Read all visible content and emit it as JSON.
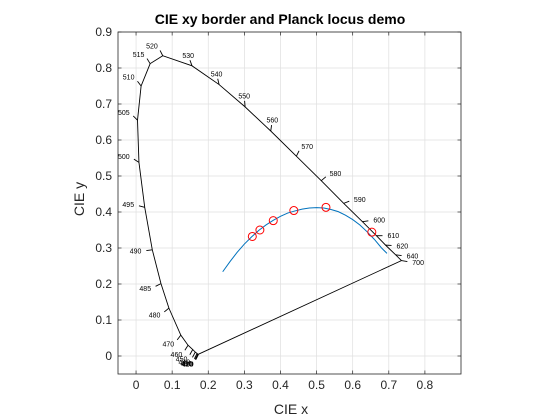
{
  "chart_data": {
    "type": "line",
    "title": "CIE xy border and Planck locus demo",
    "xlabel": "CIE x",
    "ylabel": "CIE y",
    "xlim": [
      -0.05,
      0.9
    ],
    "ylim": [
      -0.05,
      0.9
    ],
    "xticks": [
      0,
      0.1,
      0.2,
      0.3,
      0.4,
      0.5,
      0.6,
      0.7,
      0.8
    ],
    "xtick_labels": [
      "0",
      "0.1",
      "0.2",
      "0.3",
      "0.4",
      "0.5",
      "0.6",
      "0.7",
      "0.8"
    ],
    "yticks": [
      0,
      0.1,
      0.2,
      0.3,
      0.4,
      0.5,
      0.6,
      0.7,
      0.8,
      0.9
    ],
    "ytick_labels": [
      "0",
      "0.1",
      "0.2",
      "0.3",
      "0.4",
      "0.5",
      "0.6",
      "0.7",
      "0.8",
      "0.9"
    ],
    "grid": true,
    "spectral_locus": [
      {
        "label": "400",
        "x": 0.173,
        "y": 0.005
      },
      {
        "label": "410",
        "x": 0.172,
        "y": 0.005
      },
      {
        "label": "420",
        "x": 0.171,
        "y": 0.005
      },
      {
        "label": "430",
        "x": 0.169,
        "y": 0.007
      },
      {
        "label": "440",
        "x": 0.164,
        "y": 0.011
      },
      {
        "label": "450",
        "x": 0.157,
        "y": 0.018
      },
      {
        "label": "460",
        "x": 0.144,
        "y": 0.03
      },
      {
        "label": "470",
        "x": 0.124,
        "y": 0.058
      },
      {
        "label": "480",
        "x": 0.091,
        "y": 0.133
      },
      {
        "label": "485",
        "x": 0.069,
        "y": 0.201
      },
      {
        "label": "490",
        "x": 0.045,
        "y": 0.295
      },
      {
        "label": "495",
        "x": 0.024,
        "y": 0.413
      },
      {
        "label": "500",
        "x": 0.008,
        "y": 0.538
      },
      {
        "label": "505",
        "x": 0.004,
        "y": 0.655
      },
      {
        "label": "510",
        "x": 0.014,
        "y": 0.75
      },
      {
        "label": "515",
        "x": 0.039,
        "y": 0.812
      },
      {
        "label": "520",
        "x": 0.074,
        "y": 0.834
      },
      {
        "label": "530",
        "x": 0.155,
        "y": 0.806
      },
      {
        "label": "540",
        "x": 0.23,
        "y": 0.754
      },
      {
        "label": "550",
        "x": 0.302,
        "y": 0.692
      },
      {
        "label": "560",
        "x": 0.373,
        "y": 0.625
      },
      {
        "label": "570",
        "x": 0.444,
        "y": 0.555
      },
      {
        "label": "580",
        "x": 0.513,
        "y": 0.487
      },
      {
        "label": "590",
        "x": 0.575,
        "y": 0.424
      },
      {
        "label": "600",
        "x": 0.627,
        "y": 0.373
      },
      {
        "label": "610",
        "x": 0.666,
        "y": 0.334
      },
      {
        "label": "620",
        "x": 0.691,
        "y": 0.308
      },
      {
        "label": "640",
        "x": 0.719,
        "y": 0.281
      },
      {
        "label": "700",
        "x": 0.735,
        "y": 0.265
      }
    ],
    "planck_locus": [
      [
        0.24,
        0.234
      ],
      [
        0.26,
        0.262
      ],
      [
        0.28,
        0.288
      ],
      [
        0.3,
        0.311
      ],
      [
        0.32,
        0.331
      ],
      [
        0.34,
        0.349
      ],
      [
        0.36,
        0.364
      ],
      [
        0.38,
        0.377
      ],
      [
        0.4,
        0.388
      ],
      [
        0.42,
        0.397
      ],
      [
        0.44,
        0.403
      ],
      [
        0.46,
        0.408
      ],
      [
        0.48,
        0.411
      ],
      [
        0.5,
        0.412
      ],
      [
        0.52,
        0.411
      ],
      [
        0.54,
        0.407
      ],
      [
        0.56,
        0.401
      ],
      [
        0.58,
        0.391
      ],
      [
        0.6,
        0.379
      ],
      [
        0.62,
        0.364
      ],
      [
        0.64,
        0.345
      ],
      [
        0.66,
        0.324
      ],
      [
        0.68,
        0.3
      ],
      [
        0.695,
        0.285
      ]
    ],
    "markers": [
      {
        "x": 0.322,
        "y": 0.332
      },
      {
        "x": 0.343,
        "y": 0.35
      },
      {
        "x": 0.38,
        "y": 0.376
      },
      {
        "x": 0.437,
        "y": 0.404
      },
      {
        "x": 0.526,
        "y": 0.413
      },
      {
        "x": 0.653,
        "y": 0.344
      }
    ],
    "colors": {
      "locus": "#000000",
      "planck": "#0072BD",
      "marker": "#FF0000",
      "grid": "#DFDFDF",
      "axis": "#262626"
    }
  }
}
